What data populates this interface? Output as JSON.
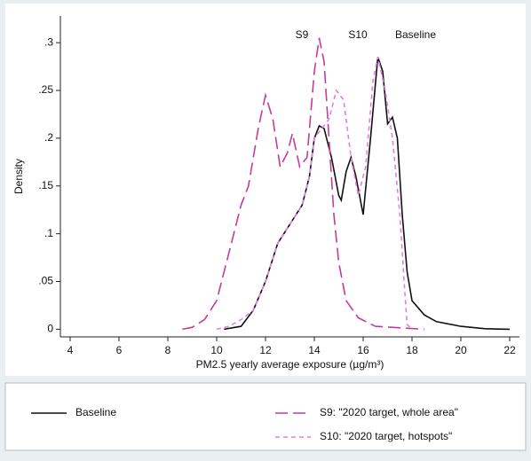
{
  "chart_data": {
    "type": "line",
    "x_label": "PM2.5 yearly average exposure (µg/m³)",
    "y_label": "Density",
    "annotations": [
      "S9",
      "S10",
      "Baseline"
    ],
    "xlim": [
      3.6,
      22.4
    ],
    "ylim": [
      -0.008,
      0.328
    ],
    "xticks": [
      4,
      6,
      8,
      10,
      12,
      14,
      16,
      18,
      20,
      22
    ],
    "yticks": [
      0,
      {
        "value": 0.05,
        "label": ".05"
      },
      {
        "value": 0.1,
        "label": ".1"
      },
      {
        "value": 0.15,
        "label": ".15"
      },
      {
        "value": 0.2,
        "label": ".2"
      },
      {
        "value": 0.25,
        "label": ".25"
      },
      {
        "value": 0.3,
        "label": ".3"
      }
    ],
    "series": [
      {
        "name": "Baseline",
        "color": "#111111",
        "dash": "none",
        "x": [
          10.3,
          11,
          11.5,
          12,
          12.5,
          13,
          13.5,
          13.8,
          14,
          14.2,
          14.4,
          14.7,
          15,
          15.1,
          15.3,
          15.5,
          15.7,
          16,
          16.3,
          16.6,
          16.8,
          17,
          17.2,
          17.4,
          17.6,
          17.8,
          18,
          18.5,
          19,
          20,
          21,
          22
        ],
        "values": [
          0,
          0.003,
          0.02,
          0.05,
          0.09,
          0.11,
          0.13,
          0.16,
          0.2,
          0.213,
          0.21,
          0.18,
          0.14,
          0.135,
          0.165,
          0.18,
          0.16,
          0.12,
          0.2,
          0.285,
          0.27,
          0.215,
          0.222,
          0.2,
          0.12,
          0.06,
          0.03,
          0.015,
          0.008,
          0.003,
          0.0005,
          0
        ]
      },
      {
        "name": "S9: \"2020 target, whole area\"",
        "color": "#c23c9c",
        "dash": "14 6",
        "x": [
          8.6,
          9,
          9.5,
          10,
          10.5,
          11,
          11.3,
          11.7,
          12,
          12.3,
          12.6,
          12.9,
          13.1,
          13.4,
          13.7,
          14,
          14.2,
          14.4,
          14.6,
          14.8,
          15,
          15.3,
          15.8,
          16.5,
          18.5
        ],
        "values": [
          0,
          0.002,
          0.01,
          0.03,
          0.08,
          0.13,
          0.15,
          0.21,
          0.245,
          0.22,
          0.17,
          0.185,
          0.205,
          0.17,
          0.18,
          0.27,
          0.305,
          0.28,
          0.2,
          0.12,
          0.07,
          0.03,
          0.012,
          0.003,
          0
        ]
      },
      {
        "name": "S10: \"2020 target, hotspots\"",
        "color": "#e67ce6",
        "dash": "5 4",
        "x": [
          10,
          10.5,
          11,
          11.5,
          12,
          12.5,
          13,
          13.5,
          13.8,
          14,
          14.3,
          14.6,
          14.9,
          15.2,
          15.5,
          15.8,
          16.1,
          16.4,
          16.6,
          16.9,
          17.2,
          17.5,
          17.7,
          17.8,
          18
        ],
        "values": [
          0,
          0.003,
          0.01,
          0.02,
          0.05,
          0.09,
          0.11,
          0.13,
          0.16,
          0.2,
          0.21,
          0.22,
          0.25,
          0.24,
          0.18,
          0.14,
          0.17,
          0.26,
          0.285,
          0.25,
          0.2,
          0.12,
          0.04,
          0.005,
          0
        ]
      }
    ]
  }
}
